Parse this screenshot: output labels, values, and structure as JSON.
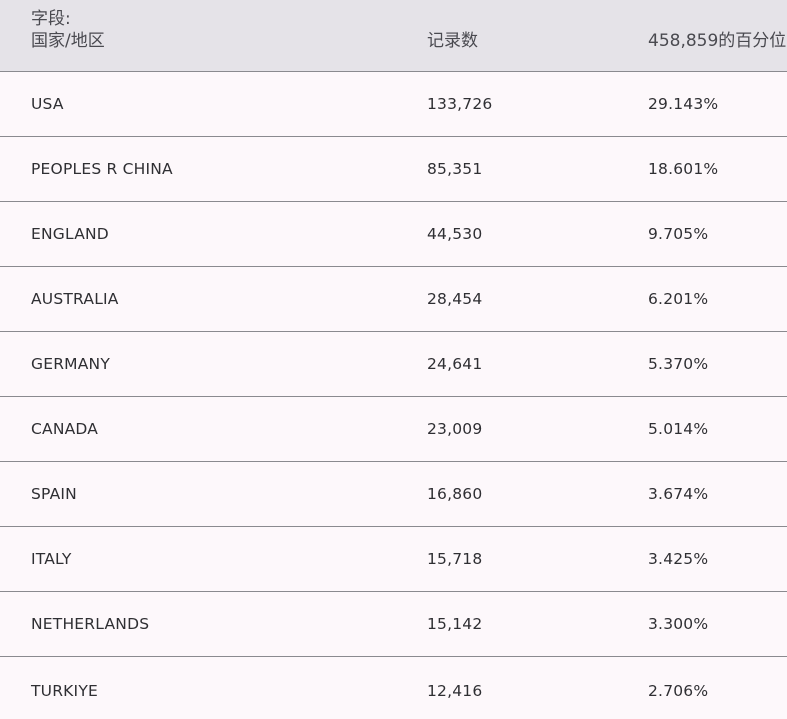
{
  "header": {
    "field_label": "字段:",
    "field_name": "国家/地区",
    "count_label": "记录数",
    "percent_label": "458,859的百分位"
  },
  "rows": [
    {
      "country": "USA",
      "count": "133,726",
      "percent": "29.143%"
    },
    {
      "country": "PEOPLES R CHINA",
      "count": "85,351",
      "percent": "18.601%"
    },
    {
      "country": "ENGLAND",
      "count": "44,530",
      "percent": "9.705%"
    },
    {
      "country": "AUSTRALIA",
      "count": "28,454",
      "percent": "6.201%"
    },
    {
      "country": "GERMANY",
      "count": "24,641",
      "percent": "5.370%"
    },
    {
      "country": "CANADA",
      "count": "23,009",
      "percent": "5.014%"
    },
    {
      "country": "SPAIN",
      "count": "16,860",
      "percent": "3.674%"
    },
    {
      "country": "ITALY",
      "count": "15,718",
      "percent": "3.425%"
    },
    {
      "country": "NETHERLANDS",
      "count": "15,142",
      "percent": "3.300%"
    },
    {
      "country": "TURKIYE",
      "count": "12,416",
      "percent": "2.706%"
    }
  ]
}
